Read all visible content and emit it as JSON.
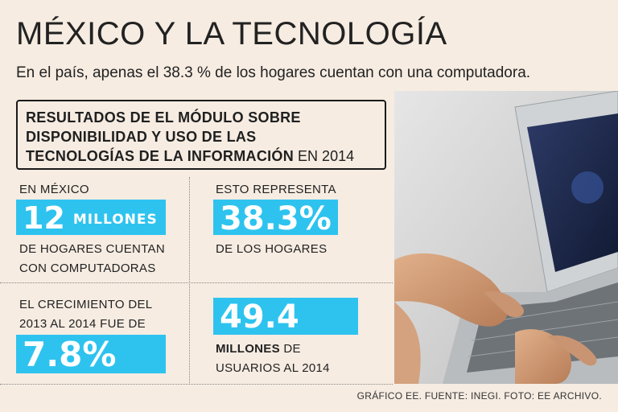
{
  "header": {
    "title": "MÉXICO Y LA TECNOLOGÍA",
    "subtitle": "En el país, apenas el 38.3 % de los hogares cuentan con una computadora."
  },
  "box": {
    "line1": "RESULTADOS DE EL MÓDULO SOBRE",
    "line2": "DISPONIBILIDAD Y USO DE LAS",
    "line3_bold": "TECNOLOGÍAS DE LA INFORMACIÓN",
    "line3_year": "EN 2014"
  },
  "stats": {
    "mexico": {
      "label": "EN MÉXICO",
      "value": "12",
      "unit": "MILLONES",
      "desc1": "DE HOGARES CUENTAN",
      "desc2": "CON COMPUTADORAS"
    },
    "represent": {
      "label": "ESTO REPRESENTA",
      "value": "38.3%",
      "desc": "DE LOS HOGARES"
    },
    "growth": {
      "label1": "EL CRECIMIENTO DEL",
      "label2": "2013 AL 2014 FUE DE",
      "value": "7.8%"
    },
    "users": {
      "value": "49.4",
      "desc1_bold": "MILLONES",
      "desc1_rest": "DE",
      "desc2": "USUARIOS AL 2014"
    }
  },
  "credit": "GRÁFICO EE. FUENTE: INEGI. FOTO: EE ARCHIVO.",
  "colors": {
    "accent": "#2ec3ef",
    "background": "#f6ece2"
  }
}
